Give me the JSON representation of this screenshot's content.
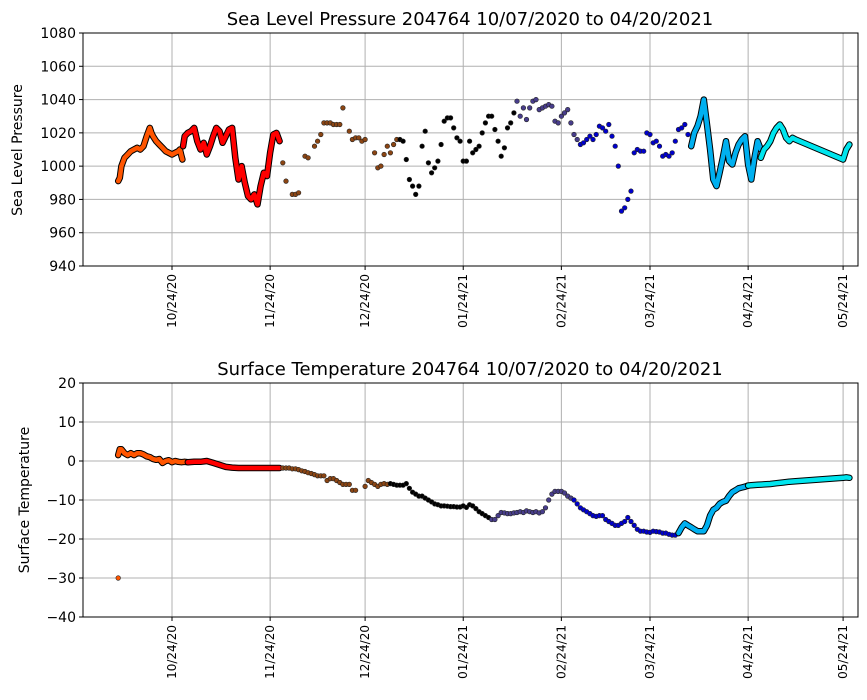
{
  "chart_data": [
    {
      "type": "scatter",
      "title": "Sea Level Pressure 204764  10/07/2020 to 04/20/2021",
      "xlabel": "",
      "ylabel": "Sea Level Pressure",
      "ylim": [
        940,
        1080
      ],
      "yticks": [
        "940",
        "960",
        "980",
        "1000",
        "1020",
        "1040",
        "1060",
        "1080"
      ],
      "ytick_values": [
        940,
        960,
        980,
        1000,
        1020,
        1040,
        1060,
        1080
      ],
      "xticks": [
        "10/24/20",
        "11/24/20",
        "12/24/20",
        "01/24/21",
        "02/24/21",
        "03/24/21",
        "04/24/21",
        "05/24/21"
      ],
      "xtick_days": [
        17,
        48,
        78,
        109,
        140,
        168,
        199,
        229
      ],
      "x_unit": "days since 10/07/2020",
      "xlim_days": [
        -11,
        231
      ],
      "grid": true,
      "series": [
        {
          "name": "dense-orange",
          "color": "#ff5500",
          "mode": "line",
          "x": [
            0,
            0.5,
            1,
            2,
            3,
            4,
            5,
            6,
            7,
            8,
            9,
            10,
            10.5,
            11,
            12,
            13,
            14,
            15,
            16,
            17,
            18,
            19,
            19.5,
            20,
            20.3
          ],
          "y": [
            991,
            993,
            1000,
            1005,
            1007,
            1009,
            1010,
            1011,
            1010,
            1012,
            1018,
            1023,
            1020,
            1018,
            1015,
            1013,
            1011,
            1009,
            1008,
            1007,
            1008,
            1009,
            1010,
            1006,
            1004
          ]
        },
        {
          "name": "dense-red",
          "color": "#ff0000",
          "mode": "line",
          "x": [
            20.5,
            21,
            22,
            23,
            24,
            25,
            26,
            27,
            28,
            29,
            30,
            31,
            32,
            33,
            34,
            35,
            36,
            37,
            38,
            39,
            40,
            41,
            42,
            43,
            44,
            45,
            46,
            47,
            48,
            49,
            50,
            51
          ],
          "y": [
            1012,
            1018,
            1020,
            1021,
            1023,
            1015,
            1010,
            1014,
            1007,
            1012,
            1018,
            1023,
            1021,
            1014,
            1018,
            1022,
            1023,
            1005,
            992,
            1000,
            990,
            982,
            980,
            983,
            977,
            988,
            996,
            994,
            1008,
            1019,
            1020,
            1015
          ]
        },
        {
          "name": "brown",
          "color": "#8b4513",
          "mode": "points",
          "x": [
            52,
            53,
            55,
            56,
            57,
            59,
            60,
            62,
            63,
            64,
            65,
            66,
            67,
            68,
            69,
            70,
            71,
            73,
            74,
            75,
            76,
            77,
            78,
            81,
            82,
            83,
            84,
            85,
            86,
            87,
            88
          ],
          "y": [
            1002,
            991,
            983,
            983,
            984,
            1006,
            1005,
            1012,
            1015,
            1019,
            1026,
            1026,
            1026,
            1025,
            1025,
            1025,
            1035,
            1021,
            1016,
            1017,
            1017,
            1015,
            1016,
            1008,
            999,
            1000,
            1007,
            1012,
            1008,
            1013,
            1016
          ]
        },
        {
          "name": "black",
          "color": "#000000",
          "mode": "points",
          "x": [
            89,
            90,
            91,
            92,
            93,
            94,
            95,
            96,
            97,
            98,
            99,
            100,
            101,
            102,
            103,
            104,
            105,
            106,
            107,
            108,
            109,
            110,
            111,
            112,
            113,
            114,
            115,
            116,
            117,
            118,
            119,
            120,
            121,
            122,
            123,
            124,
            125
          ],
          "y": [
            1016,
            1015,
            1004,
            992,
            988,
            983,
            988,
            1012,
            1021,
            1002,
            996,
            999,
            1003,
            1013,
            1027,
            1029,
            1029,
            1023,
            1017,
            1015,
            1003,
            1003,
            1015,
            1008,
            1010,
            1012,
            1020,
            1026,
            1030,
            1030,
            1022,
            1015,
            1006,
            1011,
            1023,
            1026,
            1032
          ]
        },
        {
          "name": "dark-slate",
          "color": "#483d8b",
          "mode": "points",
          "x": [
            126,
            127,
            128,
            129,
            130,
            131,
            132,
            133,
            134,
            135,
            136,
            137,
            138,
            139,
            140,
            141,
            142,
            143,
            144,
            145
          ],
          "y": [
            1039,
            1030,
            1035,
            1028,
            1035,
            1039,
            1040,
            1034,
            1035,
            1036,
            1037,
            1036,
            1027,
            1026,
            1030,
            1032,
            1034,
            1026,
            1019,
            1016
          ]
        },
        {
          "name": "blue",
          "color": "#0000cd",
          "mode": "points",
          "x": [
            146,
            147,
            148,
            149,
            150,
            151,
            152,
            153,
            154,
            155,
            156,
            157,
            158,
            159,
            160,
            161,
            162,
            163,
            164,
            165,
            166,
            167,
            168,
            169,
            170,
            171,
            172,
            173,
            174,
            175,
            176,
            177,
            178,
            179,
            180
          ],
          "y": [
            1013,
            1014,
            1016,
            1018,
            1016,
            1019,
            1024,
            1023,
            1021,
            1025,
            1018,
            1012,
            1000,
            973,
            975,
            980,
            985,
            1008,
            1010,
            1009,
            1009,
            1020,
            1019,
            1014,
            1015,
            1012,
            1006,
            1007,
            1006,
            1008,
            1015,
            1022,
            1023,
            1025,
            1019
          ]
        },
        {
          "name": "deep-sky-blue",
          "color": "#00b0f0",
          "mode": "line",
          "x": [
            181,
            182,
            183,
            184,
            185,
            186,
            187,
            188,
            189,
            190,
            191,
            192,
            193,
            194,
            195,
            196,
            197,
            198,
            199,
            200,
            201,
            202,
            203
          ],
          "y": [
            1012,
            1020,
            1024,
            1030,
            1040,
            1025,
            1010,
            992,
            988,
            996,
            1005,
            1015,
            1003,
            1001,
            1008,
            1013,
            1016,
            1018,
            1001,
            992,
            1005,
            1015,
            1010
          ]
        },
        {
          "name": "cyan",
          "color": "#00e5ee",
          "mode": "line",
          "x": [
            203,
            204,
            205,
            206,
            207,
            208,
            209,
            210,
            211,
            212,
            213,
            214,
            229,
            230,
            231
          ],
          "y": [
            1005,
            1010,
            1012,
            1015,
            1020,
            1023,
            1025,
            1022,
            1017,
            1015,
            1017,
            1016,
            1004,
            1010,
            1013
          ]
        }
      ]
    },
    {
      "type": "scatter",
      "title": "Surface Temperature 204764  10/07/2020 to 04/20/2021",
      "xlabel": "",
      "ylabel": "Surface Temperature",
      "ylim": [
        -40,
        20
      ],
      "yticks": [
        "−40",
        "−30",
        "−20",
        "−10",
        "0",
        "10",
        "20"
      ],
      "ytick_values": [
        -40,
        -30,
        -20,
        -10,
        0,
        10,
        20
      ],
      "xticks": [
        "10/24/20",
        "11/24/20",
        "12/24/20",
        "01/24/21",
        "02/24/21",
        "03/24/21",
        "04/24/21",
        "05/24/21"
      ],
      "xtick_days": [
        17,
        48,
        78,
        109,
        140,
        168,
        199,
        229
      ],
      "x_unit": "days since 10/07/2020",
      "xlim_days": [
        -11,
        231
      ],
      "grid": true,
      "series": [
        {
          "name": "orange",
          "color": "#ff5500",
          "mode": "line",
          "x": [
            0,
            0.5,
            1,
            2,
            3,
            4,
            5,
            6,
            7,
            8,
            9,
            10,
            11,
            12,
            13,
            14,
            15,
            16,
            17,
            18,
            19,
            20,
            21,
            22
          ],
          "y": [
            1.5,
            3,
            3,
            2,
            1.5,
            2,
            1.5,
            2,
            2,
            1.7,
            1.2,
            1,
            0.5,
            0.3,
            0.5,
            -0.5,
            0,
            0.2,
            -0.3,
            0,
            -0.2,
            -0.3,
            -0.2,
            -0.3
          ]
        },
        {
          "name": "outlier",
          "color": "#ff5500",
          "mode": "points",
          "x": [
            0
          ],
          "y": [
            -30
          ]
        },
        {
          "name": "red",
          "color": "#ff0000",
          "mode": "line",
          "x": [
            22,
            24,
            26,
            28,
            30,
            32,
            34,
            36,
            38,
            40,
            42,
            44,
            46,
            48,
            50,
            51
          ],
          "y": [
            -0.3,
            -0.2,
            -0.2,
            0,
            -0.5,
            -1,
            -1.5,
            -1.7,
            -1.8,
            -1.8,
            -1.8,
            -1.8,
            -1.8,
            -1.8,
            -1.8,
            -1.8
          ]
        },
        {
          "name": "brown",
          "color": "#8b4513",
          "mode": "points",
          "x": [
            52,
            53,
            54,
            55,
            56,
            57,
            58,
            59,
            60,
            61,
            62,
            63,
            64,
            65,
            66,
            67,
            68,
            69,
            70,
            71,
            72,
            73,
            74,
            75,
            78,
            79,
            80,
            81,
            82,
            83,
            84,
            85
          ],
          "y": [
            -1.8,
            -1.8,
            -1.8,
            -2,
            -2,
            -2.2,
            -2.5,
            -2.7,
            -3,
            -3.2,
            -3.5,
            -3.8,
            -3.8,
            -3.8,
            -5,
            -4.5,
            -4.5,
            -5,
            -5.5,
            -6,
            -6,
            -6,
            -7.5,
            -7.5,
            -6.5,
            -5,
            -5.5,
            -6,
            -6.5,
            -6,
            -5.8,
            -6
          ]
        },
        {
          "name": "black",
          "color": "#000000",
          "mode": "points",
          "x": [
            86,
            87,
            88,
            89,
            90,
            91,
            92,
            93,
            94,
            95,
            96,
            97,
            98,
            99,
            100,
            101,
            102,
            103,
            104,
            105,
            106,
            107,
            108,
            109,
            110,
            111,
            112,
            113,
            114,
            115,
            116,
            117
          ],
          "y": [
            -5.8,
            -6,
            -6.2,
            -6.2,
            -6.2,
            -5.8,
            -7,
            -8,
            -8.5,
            -9,
            -9,
            -9.5,
            -10,
            -10.5,
            -11,
            -11.2,
            -11.5,
            -11.5,
            -11.6,
            -11.7,
            -11.7,
            -11.8,
            -11.8,
            -11.5,
            -11.9,
            -11.2,
            -11.5,
            -12.2,
            -13,
            -13.5,
            -14,
            -14.5
          ]
        },
        {
          "name": "dark-slate",
          "color": "#483d8b",
          "mode": "points",
          "x": [
            118,
            119,
            120,
            121,
            122,
            123,
            124,
            125,
            126,
            127,
            128,
            129,
            130,
            131,
            132,
            133,
            134,
            135,
            136,
            137,
            138,
            139,
            140,
            141,
            142,
            143
          ],
          "y": [
            -15,
            -15,
            -14,
            -13.2,
            -13.3,
            -13.5,
            -13.5,
            -13.3,
            -13.2,
            -13,
            -13.2,
            -12.8,
            -13,
            -13.2,
            -13,
            -13.3,
            -13,
            -12,
            -10,
            -8.5,
            -7.8,
            -7.8,
            -7.8,
            -8.2,
            -9,
            -9.5
          ]
        },
        {
          "name": "blue",
          "color": "#0000cd",
          "mode": "points",
          "x": [
            144,
            145,
            146,
            147,
            148,
            149,
            150,
            151,
            152,
            153,
            154,
            155,
            156,
            157,
            158,
            159,
            160,
            161,
            162,
            163,
            164,
            165,
            166,
            167,
            168,
            169,
            170,
            171,
            172,
            173,
            174,
            175,
            176
          ],
          "y": [
            -10,
            -11,
            -12,
            -12.5,
            -13,
            -13.5,
            -14,
            -14.2,
            -14,
            -14,
            -15,
            -15.5,
            -16,
            -16.5,
            -16.5,
            -16,
            -15.5,
            -14.5,
            -15.5,
            -16.5,
            -17.5,
            -18,
            -18,
            -18.2,
            -18.3,
            -18,
            -18.1,
            -18.2,
            -18.5,
            -18.5,
            -18.8,
            -19,
            -19
          ]
        },
        {
          "name": "deep-sky-blue",
          "color": "#00b0f0",
          "mode": "line",
          "x": [
            177,
            178,
            179,
            180,
            181,
            182,
            183,
            184,
            185,
            186,
            187,
            188,
            189,
            190,
            191,
            192,
            193,
            194,
            195,
            196,
            197,
            198,
            199
          ],
          "y": [
            -18.5,
            -17,
            -16,
            -16.5,
            -17,
            -17.5,
            -18,
            -18,
            -18,
            -16.5,
            -14,
            -12.5,
            -12,
            -11,
            -10.5,
            -10.2,
            -9,
            -8,
            -7.5,
            -7,
            -6.8,
            -6.6,
            -6.3
          ]
        },
        {
          "name": "cyan",
          "color": "#00e5ee",
          "mode": "line",
          "x": [
            199,
            200,
            202,
            204,
            206,
            208,
            210,
            212,
            214,
            229,
            230,
            231
          ],
          "y": [
            -6.3,
            -6.2,
            -6.1,
            -6,
            -5.9,
            -5.7,
            -5.5,
            -5.3,
            -5.2,
            -4.3,
            -4.2,
            -4.3
          ]
        }
      ]
    }
  ]
}
